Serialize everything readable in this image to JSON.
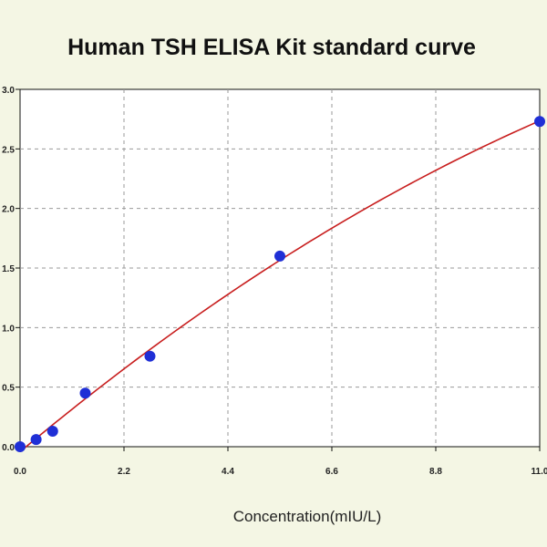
{
  "chart_data": {
    "type": "scatter",
    "title": "Human TSH ELISA Kit standard curve",
    "xlabel": "Concentration(mIU/L)",
    "ylabel": "",
    "xlim": [
      0,
      11
    ],
    "ylim": [
      0,
      3.0
    ],
    "x_ticks": [
      "0.0",
      "2.2",
      "4.4",
      "6.6",
      "8.8",
      "11.0"
    ],
    "y_ticks": [
      "0.0",
      "0.5",
      "1.0",
      "1.5",
      "2.0",
      "2.5",
      "3.0"
    ],
    "grid": true,
    "series": [
      {
        "x": [
          0.0,
          0.34,
          0.69,
          1.38,
          2.75,
          5.5,
          11.0
        ],
        "values": [
          0.0,
          0.06,
          0.13,
          0.45,
          0.76,
          1.6,
          2.73
        ],
        "marker_color": "#1f2fd6",
        "fit_line_color": "#c81e1e",
        "fit": "polynomial"
      }
    ]
  }
}
